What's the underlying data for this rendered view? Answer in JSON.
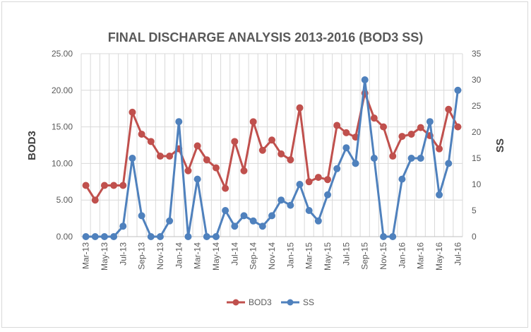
{
  "chart_data": {
    "type": "line",
    "title": "FINAL DISCHARGE  ANALYSIS 2013-2016  (BOD3  SS)",
    "ylabel_left": "BOD3",
    "ylabel_right": "SS",
    "ylim_left": [
      0,
      25
    ],
    "ylim_right": [
      0,
      35
    ],
    "yticks_left": [
      "0.00",
      "5.00",
      "10.00",
      "15.00",
      "20.00",
      "25.00"
    ],
    "yticks_right": [
      "0",
      "5",
      "10",
      "15",
      "20",
      "25",
      "30",
      "35"
    ],
    "x_tick_labels": [
      "Mar-13",
      "May-13",
      "Jul-13",
      "Sep-13",
      "Nov-13",
      "Jan-14",
      "Mar-14",
      "May-14",
      "Jul-14",
      "Sep-14",
      "Nov-14",
      "Jan-15",
      "Mar-15",
      "May-15",
      "Jul-15",
      "Sep-15",
      "Nov-15",
      "Jan-16",
      "Mar-16",
      "May-16",
      "Jul-16"
    ],
    "categories": [
      "Mar-13",
      "Apr-13",
      "May-13",
      "Jun-13",
      "Jul-13",
      "Aug-13",
      "Sep-13",
      "Oct-13",
      "Nov-13",
      "Dec-13",
      "Jan-14",
      "Feb-14",
      "Mar-14",
      "Apr-14",
      "May-14",
      "Jun-14",
      "Jul-14",
      "Aug-14",
      "Sep-14",
      "Oct-14",
      "Nov-14",
      "Dec-14",
      "Jan-15",
      "Feb-15",
      "Mar-15",
      "Apr-15",
      "May-15",
      "Jun-15",
      "Jul-15",
      "Aug-15",
      "Sep-15",
      "Oct-15",
      "Nov-15",
      "Dec-15",
      "Jan-16",
      "Feb-16",
      "Mar-16",
      "Apr-16",
      "May-16",
      "Jun-16",
      "Jul-16"
    ],
    "grid": true,
    "legend_position": "bottom",
    "series": [
      {
        "name": "BOD3",
        "axis": "left",
        "color": "#c0504d",
        "values": [
          7.0,
          5.0,
          7.0,
          7.0,
          7.0,
          17.0,
          14.0,
          13.0,
          11.0,
          11.0,
          12.0,
          9.0,
          12.4,
          10.5,
          9.4,
          6.6,
          13.0,
          9.0,
          15.7,
          11.8,
          13.2,
          11.3,
          10.5,
          17.6,
          7.5,
          8.1,
          7.8,
          15.2,
          14.2,
          13.6,
          19.6,
          16.2,
          15.0,
          11.0,
          13.7,
          14.0,
          14.9,
          13.8,
          12.0,
          17.4,
          15.0
        ]
      },
      {
        "name": "SS",
        "axis": "right",
        "color": "#4f81bd",
        "values": [
          0,
          0,
          0,
          0,
          2,
          15,
          4,
          0,
          0,
          3,
          22,
          0,
          11,
          0,
          0,
          5,
          2,
          4,
          3,
          2,
          4,
          7,
          6,
          10,
          5,
          3,
          8,
          13,
          17,
          14,
          30,
          15,
          0,
          0,
          11,
          15,
          15,
          22,
          8,
          14,
          28
        ]
      }
    ]
  }
}
